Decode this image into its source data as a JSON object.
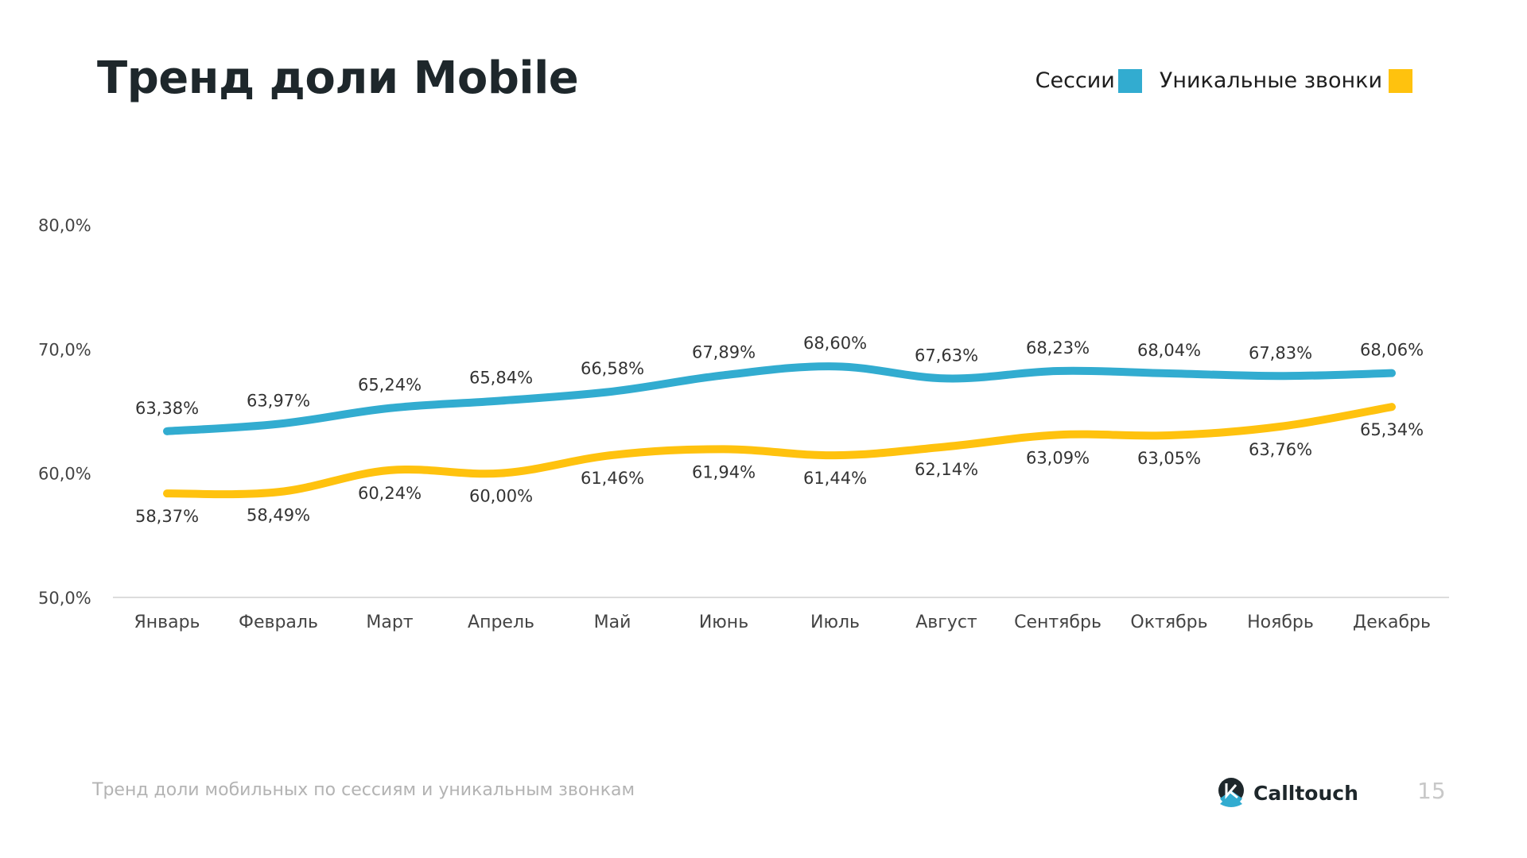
{
  "slide": {
    "title": "Тренд доли Mobile",
    "caption": "Тренд доли мобильных по сессиям и уникальным звонкам",
    "brand": "Calltouch",
    "page_number": "15"
  },
  "legend": [
    {
      "label": "Сессии",
      "color": "#32acd0"
    },
    {
      "label": "Уникальные звонки",
      "color": "#ffc20e"
    }
  ],
  "chart_data": {
    "type": "line",
    "title": "Тренд доли Mobile",
    "xlabel": "",
    "ylabel": "",
    "categories": [
      "Январь",
      "Февраль",
      "Март",
      "Апрель",
      "Май",
      "Июнь",
      "Июль",
      "Август",
      "Сентябрь",
      "Октябрь",
      "Ноябрь",
      "Декабрь"
    ],
    "ylim": [
      50,
      80
    ],
    "yticks": [
      50,
      60,
      70,
      80
    ],
    "ytick_labels": [
      "50,0%",
      "60,0%",
      "70,0%",
      "80,0%"
    ],
    "grid": false,
    "legend_position": "top-right",
    "smooth": true,
    "series": [
      {
        "name": "Сессии",
        "color": "#32acd0",
        "label_position": "above",
        "values": [
          63.38,
          63.97,
          65.24,
          65.84,
          66.58,
          67.89,
          68.6,
          67.63,
          68.23,
          68.04,
          67.83,
          68.06
        ],
        "labels": [
          "63,38%",
          "63,97%",
          "65,24%",
          "65,84%",
          "66,58%",
          "67,89%",
          "68,60%",
          "67,63%",
          "68,23%",
          "68,04%",
          "67,83%",
          "68,06%"
        ]
      },
      {
        "name": "Уникальные звонки",
        "color": "#ffc20e",
        "label_position": "below",
        "values": [
          58.37,
          58.49,
          60.24,
          60.0,
          61.46,
          61.94,
          61.44,
          62.14,
          63.09,
          63.05,
          63.76,
          65.34
        ],
        "labels": [
          "58,37%",
          "58,49%",
          "60,24%",
          "60,00%",
          "61,46%",
          "61,94%",
          "61,44%",
          "62,14%",
          "63,09%",
          "63,05%",
          "63,76%",
          "65,34%"
        ]
      }
    ]
  }
}
